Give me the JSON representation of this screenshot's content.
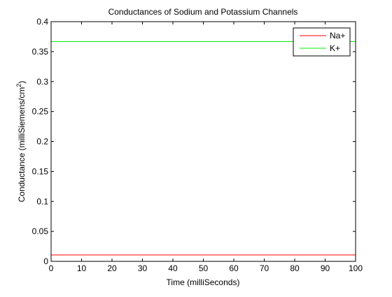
{
  "chart_data": {
    "type": "line",
    "title": "Conductances of Sodium and Potassium Channels",
    "xlabel": "Time (milliSeconds)",
    "ylabel_main": "Conductance (milliSiemens/cm",
    "ylabel_sup": "2",
    "ylabel_close": ")",
    "xlim": [
      0,
      100
    ],
    "ylim": [
      0,
      0.4
    ],
    "xticks": [
      "0",
      "10",
      "20",
      "30",
      "40",
      "50",
      "60",
      "70",
      "80",
      "90",
      "100"
    ],
    "yticks": [
      "0",
      "0.05",
      "0.1",
      "0.15",
      "0.2",
      "0.25",
      "0.3",
      "0.35",
      "0.4"
    ],
    "grid": false,
    "legend_position": "top-right",
    "series": [
      {
        "name": "Na+",
        "color": "#ff0000",
        "x": [
          0,
          100
        ],
        "y": [
          0.0106,
          0.0106
        ]
      },
      {
        "name": "K+",
        "color": "#00ee00",
        "x": [
          0,
          100
        ],
        "y": [
          0.3668,
          0.3668
        ]
      }
    ]
  }
}
